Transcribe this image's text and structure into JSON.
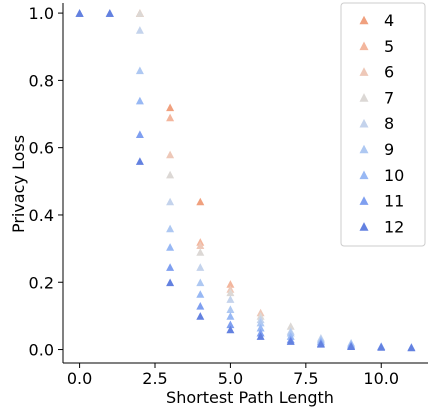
{
  "chart_data": {
    "type": "scatter",
    "title": "",
    "xlabel": "Shortest Path Length",
    "ylabel": "Privacy Loss",
    "xlim": [
      -0.55,
      11.55
    ],
    "ylim": [
      -0.04,
      1.03
    ],
    "xticks": [
      0.0,
      2.5,
      5.0,
      7.5,
      10.0
    ],
    "xtick_labels": [
      "0.0",
      "2.5",
      "5.0",
      "7.5",
      "10.0"
    ],
    "yticks": [
      0.0,
      0.2,
      0.4,
      0.6,
      0.8,
      1.0
    ],
    "ytick_labels": [
      "0.0",
      "0.2",
      "0.4",
      "0.6",
      "0.8",
      "1.0"
    ],
    "grid": false,
    "legend_position": "top-right",
    "marker": "triangle",
    "series": [
      {
        "name": "4",
        "color": "#f0a07e",
        "x": [
          0,
          1,
          2,
          3,
          4
        ],
        "y": [
          1.0,
          1.0,
          1.0,
          0.72,
          0.44
        ]
      },
      {
        "name": "5",
        "color": "#f3b69d",
        "x": [
          0,
          1,
          2,
          3,
          4,
          5
        ],
        "y": [
          1.0,
          1.0,
          1.0,
          0.69,
          0.32,
          0.195
        ]
      },
      {
        "name": "6",
        "color": "#eec8b8",
        "x": [
          0,
          1,
          2,
          3,
          4,
          5,
          6
        ],
        "y": [
          1.0,
          1.0,
          1.0,
          0.58,
          0.31,
          0.18,
          0.11
        ]
      },
      {
        "name": "7",
        "color": "#dcd8d5",
        "x": [
          0,
          1,
          2,
          3,
          4,
          5,
          6,
          7
        ],
        "y": [
          1.0,
          1.0,
          1.0,
          0.52,
          0.29,
          0.17,
          0.1,
          0.07
        ]
      },
      {
        "name": "8",
        "color": "#c4d3ec",
        "x": [
          0,
          1,
          2,
          3,
          4,
          5,
          6,
          7,
          8
        ],
        "y": [
          1.0,
          1.0,
          0.95,
          0.44,
          0.245,
          0.15,
          0.09,
          0.055,
          0.035
        ]
      },
      {
        "name": "9",
        "color": "#aec8f2",
        "x": [
          0,
          1,
          2,
          3,
          4,
          5,
          6,
          7,
          8,
          9
        ],
        "y": [
          1.0,
          1.0,
          0.83,
          0.36,
          0.2,
          0.12,
          0.08,
          0.05,
          0.03,
          0.02
        ]
      },
      {
        "name": "10",
        "color": "#98b8f4",
        "x": [
          0,
          1,
          2,
          3,
          4,
          5,
          6,
          7,
          8,
          9,
          10
        ],
        "y": [
          1.0,
          1.0,
          0.74,
          0.305,
          0.165,
          0.1,
          0.065,
          0.04,
          0.025,
          0.015,
          0.01
        ]
      },
      {
        "name": "11",
        "color": "#7f9ff0",
        "x": [
          0,
          1,
          2,
          3,
          4,
          5,
          6,
          7,
          8,
          9,
          10,
          11
        ],
        "y": [
          1.0,
          1.0,
          0.64,
          0.245,
          0.13,
          0.075,
          0.05,
          0.03,
          0.02,
          0.012,
          0.01,
          0.008
        ]
      },
      {
        "name": "12",
        "color": "#6381e0",
        "x": [
          0,
          1,
          2,
          3,
          4,
          5,
          6,
          7,
          8,
          9,
          10,
          11
        ],
        "y": [
          1.0,
          1.0,
          0.56,
          0.2,
          0.1,
          0.06,
          0.04,
          0.025,
          0.017,
          0.01,
          0.008,
          0.006
        ]
      }
    ]
  }
}
